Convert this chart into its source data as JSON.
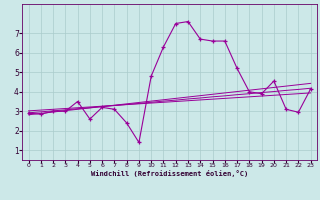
{
  "xlabel": "Windchill (Refroidissement éolien,°C)",
  "x_hours": [
    0,
    1,
    2,
    3,
    4,
    5,
    6,
    7,
    8,
    9,
    10,
    11,
    12,
    13,
    14,
    15,
    16,
    17,
    18,
    19,
    20,
    21,
    22,
    23
  ],
  "main_line": [
    2.9,
    2.85,
    3.0,
    3.0,
    3.5,
    2.6,
    3.2,
    3.1,
    2.4,
    1.4,
    4.8,
    6.3,
    7.5,
    7.6,
    6.7,
    6.6,
    6.6,
    5.2,
    4.0,
    3.9,
    4.55,
    3.1,
    2.95,
    4.15
  ],
  "reg_line1": [
    3.02,
    3.06,
    3.1,
    3.14,
    3.18,
    3.22,
    3.26,
    3.3,
    3.34,
    3.38,
    3.42,
    3.46,
    3.5,
    3.54,
    3.58,
    3.62,
    3.66,
    3.7,
    3.74,
    3.78,
    3.82,
    3.86,
    3.9,
    3.94
  ],
  "reg_line2": [
    2.92,
    2.97,
    3.02,
    3.07,
    3.13,
    3.18,
    3.24,
    3.29,
    3.35,
    3.4,
    3.46,
    3.52,
    3.57,
    3.63,
    3.68,
    3.74,
    3.79,
    3.85,
    3.9,
    3.96,
    4.01,
    4.07,
    4.12,
    4.18
  ],
  "reg_line3": [
    2.82,
    2.89,
    2.96,
    3.03,
    3.1,
    3.17,
    3.24,
    3.31,
    3.38,
    3.45,
    3.52,
    3.59,
    3.66,
    3.73,
    3.8,
    3.87,
    3.94,
    4.01,
    4.08,
    4.15,
    4.22,
    4.29,
    4.36,
    4.43
  ],
  "line_color": "#990099",
  "bg_color": "#cce8e8",
  "grid_color": "#aacccc",
  "ylim": [
    0.5,
    8.5
  ],
  "yticks": [
    1,
    2,
    3,
    4,
    5,
    6,
    7
  ],
  "xlim": [
    -0.5,
    23.5
  ],
  "xticks": [
    0,
    1,
    2,
    3,
    4,
    5,
    6,
    7,
    8,
    9,
    10,
    11,
    12,
    13,
    14,
    15,
    16,
    17,
    18,
    19,
    20,
    21,
    22,
    23
  ]
}
